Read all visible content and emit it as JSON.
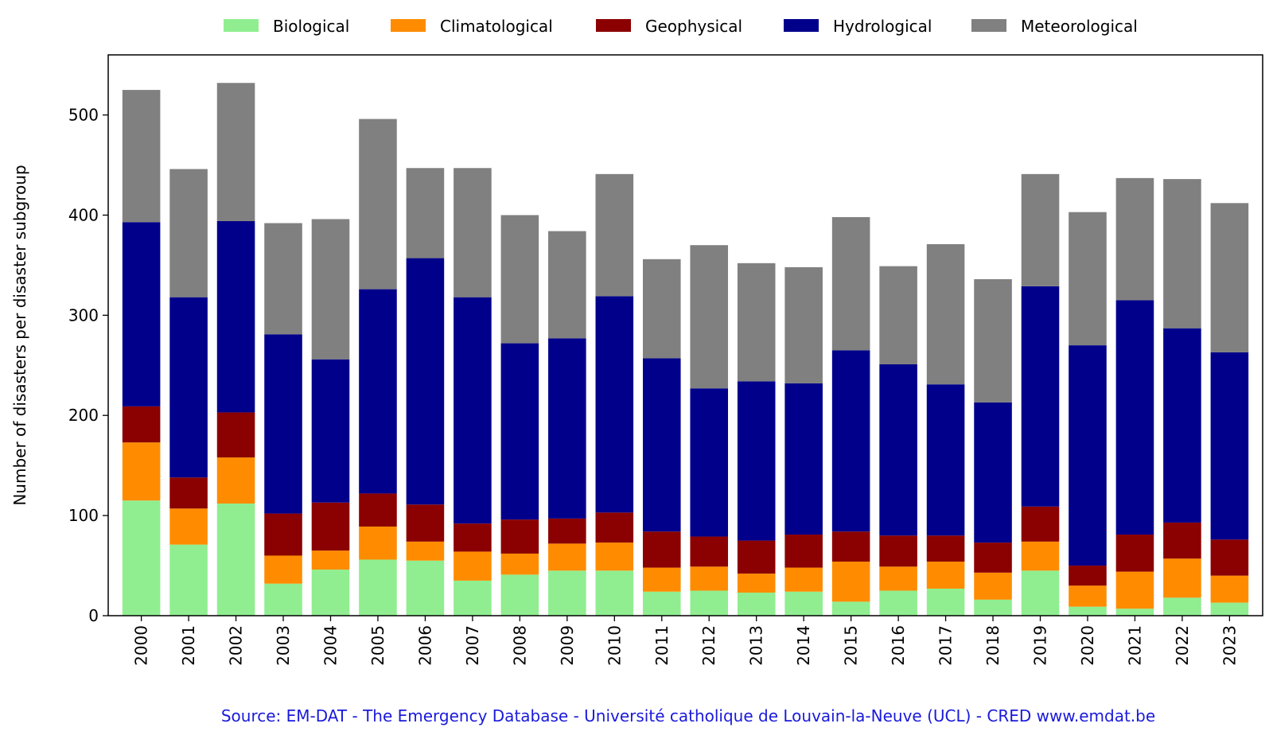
{
  "chart_data": {
    "type": "bar",
    "stacked": true,
    "categories": [
      "2000",
      "2001",
      "2002",
      "2003",
      "2004",
      "2005",
      "2006",
      "2007",
      "2008",
      "2009",
      "2010",
      "2011",
      "2012",
      "2013",
      "2014",
      "2015",
      "2016",
      "2017",
      "2018",
      "2019",
      "2020",
      "2021",
      "2022",
      "2023"
    ],
    "series": [
      {
        "name": "Biological",
        "color": "#90ee90",
        "values": [
          115,
          71,
          112,
          32,
          46,
          56,
          55,
          35,
          41,
          45,
          45,
          24,
          25,
          23,
          24,
          14,
          25,
          27,
          16,
          45,
          9,
          7,
          18,
          13
        ]
      },
      {
        "name": "Climatological",
        "color": "#ff8c00",
        "values": [
          58,
          36,
          46,
          28,
          19,
          33,
          19,
          29,
          21,
          27,
          28,
          24,
          24,
          19,
          24,
          40,
          24,
          27,
          27,
          29,
          21,
          37,
          39,
          27
        ]
      },
      {
        "name": "Geophysical",
        "color": "#8b0000",
        "values": [
          36,
          31,
          45,
          42,
          48,
          33,
          37,
          28,
          34,
          25,
          30,
          36,
          30,
          33,
          33,
          30,
          31,
          26,
          30,
          35,
          20,
          37,
          36,
          36
        ]
      },
      {
        "name": "Hydrological",
        "color": "#00008b",
        "values": [
          184,
          180,
          191,
          179,
          143,
          204,
          246,
          226,
          176,
          180,
          216,
          173,
          148,
          159,
          151,
          181,
          171,
          151,
          140,
          220,
          220,
          234,
          194,
          187
        ]
      },
      {
        "name": "Meteorological",
        "color": "#808080",
        "values": [
          132,
          128,
          138,
          111,
          140,
          170,
          90,
          129,
          128,
          107,
          122,
          99,
          143,
          118,
          116,
          133,
          98,
          140,
          123,
          112,
          133,
          122,
          149,
          149
        ]
      }
    ],
    "title": "",
    "xlabel": "",
    "ylabel": "Number of disasters per disaster subgroup",
    "ylim": [
      0,
      560
    ],
    "yticks": [
      0,
      100,
      200,
      300,
      400,
      500
    ],
    "grid": false,
    "legend": "top, outside plot, single row"
  },
  "source": "Source: EM-DAT - The Emergency Database - Université catholique de Louvain-la-Neuve (UCL) - CRED www.emdat.be"
}
